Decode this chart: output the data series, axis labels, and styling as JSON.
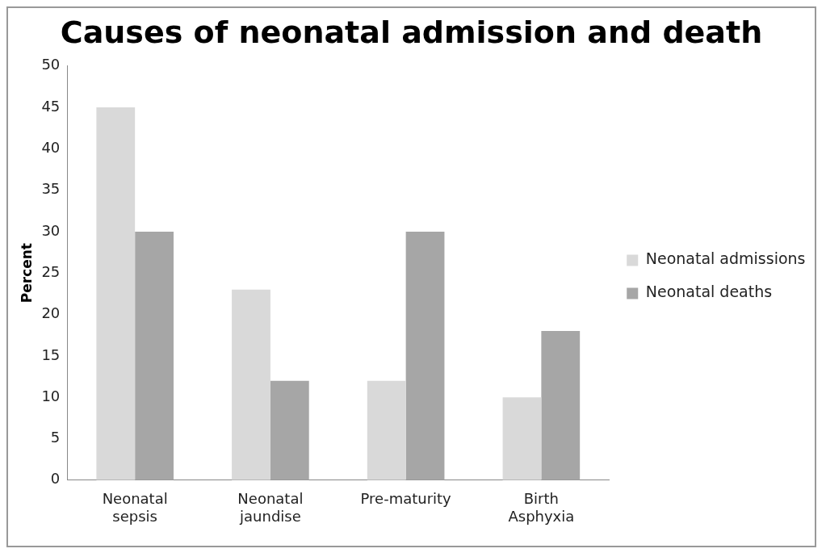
{
  "chart_data": {
    "type": "bar",
    "title": "Causes of neonatal admission and death",
    "ylabel": "Percent",
    "categories": [
      "Neonatal sepsis",
      "Neonatal jaundise",
      "Pre-maturity",
      "Birth Asphyxia"
    ],
    "series": [
      {
        "name": "Neonatal admissions",
        "color": "#d9d9d9",
        "values": [
          45,
          23,
          12,
          10
        ]
      },
      {
        "name": "Neonatal deaths",
        "color": "#a6a6a6",
        "values": [
          30,
          12,
          30,
          18
        ]
      }
    ],
    "ylim": [
      0,
      50
    ],
    "yticks": [
      0,
      5,
      10,
      15,
      20,
      25,
      30,
      35,
      40,
      45,
      50
    ],
    "grid": false,
    "legend": "right"
  }
}
